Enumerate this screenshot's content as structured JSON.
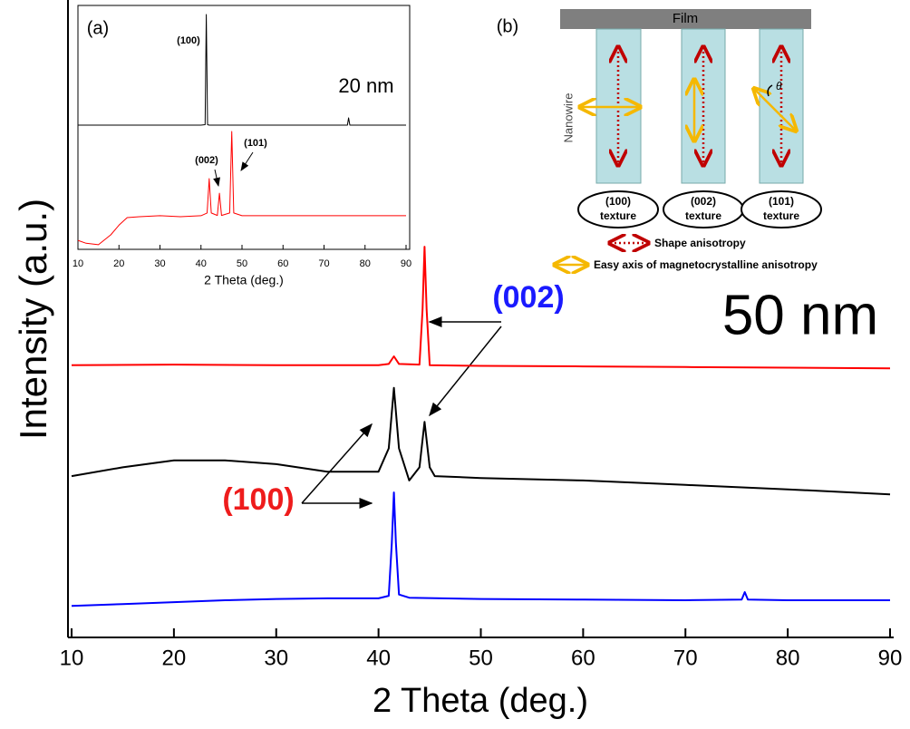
{
  "chart_data": [
    {
      "type": "line",
      "xlabel": "2 Theta (deg.)",
      "ylabel": "Intensity (a.u.)",
      "xlim": [
        10,
        90
      ],
      "xticks": [
        10,
        20,
        30,
        40,
        50,
        60,
        70,
        80,
        90
      ],
      "ylim": [
        0,
        100
      ],
      "series": [
        {
          "color": "#ff0000",
          "x": [
            10,
            20,
            30,
            40,
            41,
            41.5,
            42,
            44,
            44.3,
            44.5,
            44.7,
            45,
            50,
            60,
            70,
            80,
            90
          ],
          "values": [
            43.2,
            43.3,
            43.2,
            43.2,
            43.4,
            44.6,
            43.4,
            43.3,
            52,
            62.0,
            52,
            43.2,
            43.1,
            43.0,
            42.9,
            42.8,
            42.7
          ]
        },
        {
          "color": "#000000",
          "x": [
            10,
            15,
            20,
            25,
            30,
            35,
            40,
            41,
            41.5,
            42,
            43,
            44,
            44.5,
            45,
            45.5,
            50,
            60,
            70,
            80,
            90
          ],
          "values": [
            25.6,
            27.0,
            28.1,
            28.1,
            27.5,
            26.3,
            26.3,
            30,
            39.6,
            30,
            24.9,
            27,
            34.2,
            27,
            25.6,
            25.3,
            24.9,
            24.2,
            23.5,
            22.7
          ]
        },
        {
          "color": "#0000ff",
          "x": [
            10,
            15,
            20,
            25,
            30,
            35,
            40,
            41,
            41.3,
            41.5,
            41.7,
            42,
            43,
            50,
            60,
            70,
            75.5,
            75.8,
            76.1,
            80,
            90
          ],
          "values": [
            5.0,
            5.3,
            5.6,
            5.9,
            6.1,
            6.2,
            6.2,
            6.6,
            15,
            23.0,
            15,
            6.8,
            6.3,
            6.1,
            6.0,
            5.9,
            6.0,
            7.2,
            6.0,
            5.9,
            5.9
          ]
        }
      ],
      "annotations": [
        {
          "text": "(002)",
          "color": "#1a1aff"
        },
        {
          "text": "(100)",
          "color": "#ee1c1c"
        },
        {
          "text": "50 nm",
          "color": "#000000"
        }
      ]
    },
    {
      "type": "line",
      "panel_label": "(a)",
      "xlabel": "2 Theta (deg.)",
      "xlim": [
        10,
        90
      ],
      "xticks": [
        10,
        20,
        30,
        40,
        50,
        60,
        70,
        80,
        90
      ],
      "ylim": [
        0,
        100
      ],
      "series": [
        {
          "color": "#000000",
          "x": [
            10,
            20,
            30,
            40,
            41,
            41.3,
            41.6,
            42,
            50,
            60,
            70,
            75.7,
            76,
            76.3,
            80,
            90
          ],
          "values": [
            51.3,
            51.3,
            51.3,
            51.3,
            51.5,
            97,
            51.5,
            51.3,
            51.3,
            51.3,
            51.3,
            51.3,
            54.3,
            51.3,
            51.3,
            51.3
          ]
        },
        {
          "color": "#ff0000",
          "x": [
            10,
            12,
            15,
            18,
            20,
            22,
            25,
            30,
            35,
            40,
            41.5,
            42,
            42.5,
            44,
            44.5,
            45,
            47,
            47.5,
            48,
            50,
            60,
            70,
            80,
            90
          ],
          "values": [
            3.7,
            2.5,
            1.9,
            6,
            10,
            13.1,
            13.5,
            13.9,
            13.5,
            13.9,
            15,
            29.2,
            15,
            14,
            23.2,
            14,
            15,
            48.7,
            15,
            13.9,
            13.9,
            13.9,
            13.9,
            13.9
          ]
        }
      ],
      "annotations": [
        {
          "text": "(100)",
          "color": "#000000"
        },
        {
          "text": "20 nm",
          "color": "#000000"
        },
        {
          "text": "(002)",
          "color": "#000000"
        },
        {
          "text": "(101)",
          "color": "#000000"
        }
      ]
    }
  ],
  "diagram": {
    "panel_label": "(b)",
    "film": "Film",
    "nanowire": "Nanowire",
    "angle": "θ",
    "textures": [
      {
        "index": "(100)",
        "label": "texture"
      },
      {
        "index": "(002)",
        "label": "texture"
      },
      {
        "index": "(101)",
        "label": "texture"
      }
    ],
    "legend": [
      "Shape anisotropy",
      "Easy axis of magnetocrystalline anisotropy"
    ]
  }
}
